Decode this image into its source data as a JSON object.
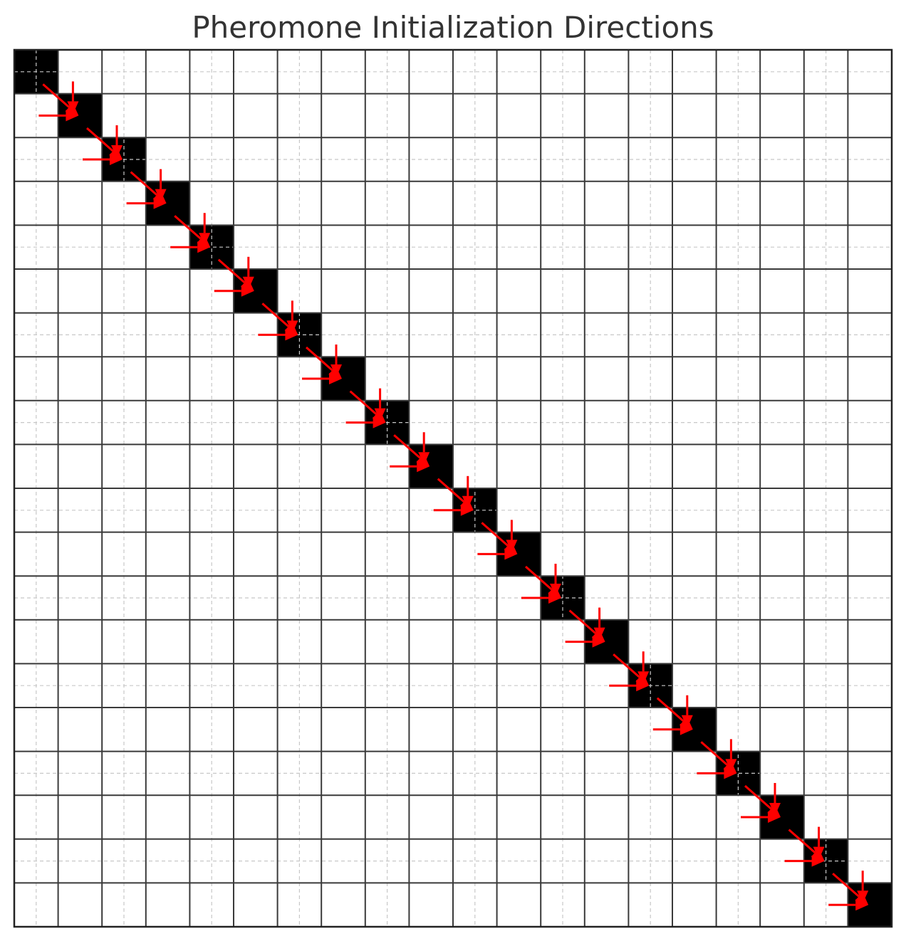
{
  "chart_data": {
    "type": "heatmap",
    "title": "Pheromone Initialization Directions",
    "grid_size": 20,
    "minor_grid": "dashed",
    "major_grid": "solid",
    "filled_cells": [
      [
        0,
        0
      ],
      [
        1,
        1
      ],
      [
        2,
        2
      ],
      [
        3,
        3
      ],
      [
        4,
        4
      ],
      [
        5,
        5
      ],
      [
        6,
        6
      ],
      [
        7,
        7
      ],
      [
        8,
        8
      ],
      [
        9,
        9
      ],
      [
        10,
        10
      ],
      [
        11,
        11
      ],
      [
        12,
        12
      ],
      [
        13,
        13
      ],
      [
        14,
        14
      ],
      [
        15,
        15
      ],
      [
        16,
        16
      ],
      [
        17,
        17
      ],
      [
        18,
        18
      ],
      [
        19,
        19
      ]
    ],
    "arrow_directions": [
      "right",
      "down",
      "down-right"
    ],
    "arrow_targets": [
      1,
      2,
      3,
      4,
      5,
      6,
      7,
      8,
      9,
      10,
      11,
      12,
      13,
      14,
      15,
      16,
      17,
      18,
      19
    ],
    "colors": {
      "cell_fill": "#000000",
      "arrow": "#ff0000",
      "major_grid": "#3a3a3a",
      "minor_grid": "#c8c8c8",
      "title": "#333333"
    }
  }
}
